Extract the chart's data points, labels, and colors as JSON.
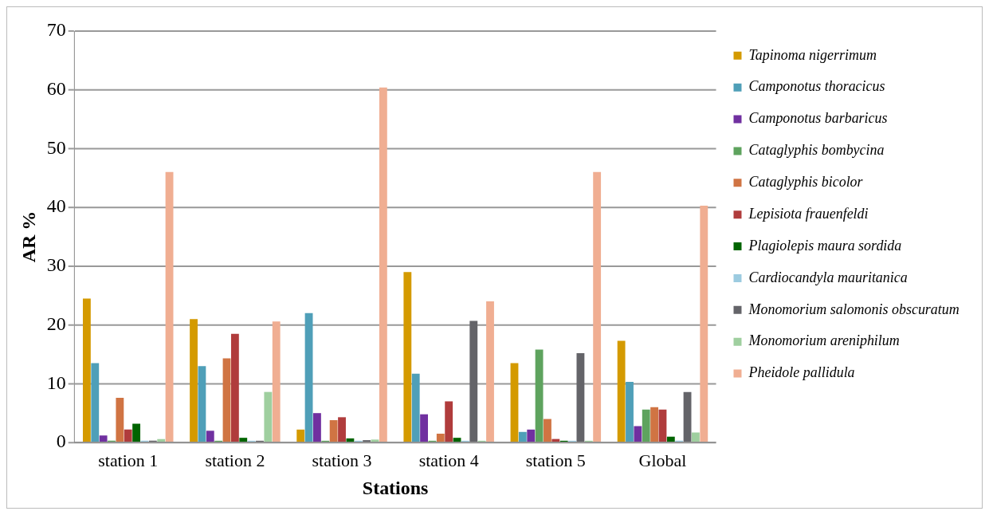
{
  "chart_data": {
    "type": "bar",
    "xlabel": "Stations",
    "ylabel": "AR %",
    "categories": [
      "station 1",
      "station 2",
      "station 3",
      "station 4",
      "station 5",
      "Global"
    ],
    "series": [
      {
        "name": "Tapinoma nigerrimum",
        "color": "#d49a00",
        "values": [
          24.5,
          21,
          2.2,
          29,
          13.5,
          17.3
        ]
      },
      {
        "name": "Camponotus thoracicus",
        "color": "#4f9fb8",
        "values": [
          13.5,
          13,
          22,
          11.7,
          1.8,
          10.3
        ]
      },
      {
        "name": "Camponotus barbaricus",
        "color": "#7030a0",
        "values": [
          1.2,
          2,
          5,
          4.8,
          2.2,
          2.8
        ]
      },
      {
        "name": "Cataglyphis bombycina",
        "color": "#5ea35e",
        "values": [
          0.3,
          0.3,
          0.3,
          0.3,
          15.8,
          5.6
        ]
      },
      {
        "name": "Cataglyphis bicolor",
        "color": "#d07443",
        "values": [
          7.6,
          14.3,
          3.8,
          1.5,
          4,
          6
        ]
      },
      {
        "name": "Lepisiota frauenfeldi",
        "color": "#b03c3c",
        "values": [
          2.2,
          18.5,
          4.3,
          7,
          0.6,
          5.6
        ]
      },
      {
        "name": "Plagiolepis maura sordida",
        "color": "#006400",
        "values": [
          3.2,
          0.8,
          0.7,
          0.8,
          0.3,
          1
        ]
      },
      {
        "name": "Cardiocandyla mauritanica",
        "color": "#9ccbe0",
        "values": [
          0.3,
          0.3,
          0.3,
          0.3,
          0.3,
          0.3
        ]
      },
      {
        "name": "Monomorium salomonis obscuratum",
        "color": "#646469",
        "values": [
          0.3,
          0.3,
          0.4,
          20.7,
          15.2,
          8.6
        ]
      },
      {
        "name": "Monomorium areniphilum",
        "color": "#9fcf9f",
        "values": [
          0.6,
          8.6,
          0.5,
          0.3,
          0.3,
          1.7
        ]
      },
      {
        "name": "Pheidole pallidula",
        "color": "#f0ae92",
        "values": [
          46,
          20.6,
          60.4,
          24,
          46,
          40.3
        ]
      }
    ],
    "ylim": [
      0,
      70
    ],
    "yticks": [
      0,
      10,
      20,
      30,
      40,
      50,
      60,
      70
    ],
    "grid": "y",
    "legend": "right"
  }
}
